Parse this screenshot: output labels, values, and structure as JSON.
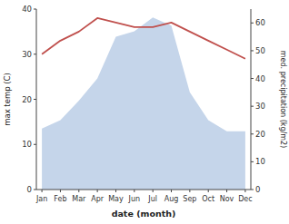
{
  "chart_data": {
    "type": "line",
    "categories": [
      "Jan",
      "Feb",
      "Mar",
      "Apr",
      "May",
      "Jun",
      "Jul",
      "Aug",
      "Sep",
      "Oct",
      "Nov",
      "Dec"
    ],
    "xlabel": "date (month)",
    "ylabel": "max temp (C)",
    "y2label": "med. precipitation (kg/m2)",
    "ylim": [
      0,
      40
    ],
    "yticks": [
      0,
      10,
      20,
      30,
      40
    ],
    "y2lim": [
      0,
      65
    ],
    "y2ticks": [
      0,
      10,
      20,
      30,
      40,
      50,
      60
    ],
    "grid": false,
    "series": [
      {
        "type": "area",
        "axis": "y2",
        "color": "#c5d5ea",
        "values": [
          22,
          25,
          32,
          40,
          55,
          57,
          62,
          59,
          35,
          25,
          21,
          21
        ]
      },
      {
        "type": "line",
        "color": "#c0504d",
        "values": [
          30,
          33,
          35,
          38,
          37,
          36,
          36,
          37,
          35,
          33,
          31,
          29
        ]
      }
    ]
  }
}
